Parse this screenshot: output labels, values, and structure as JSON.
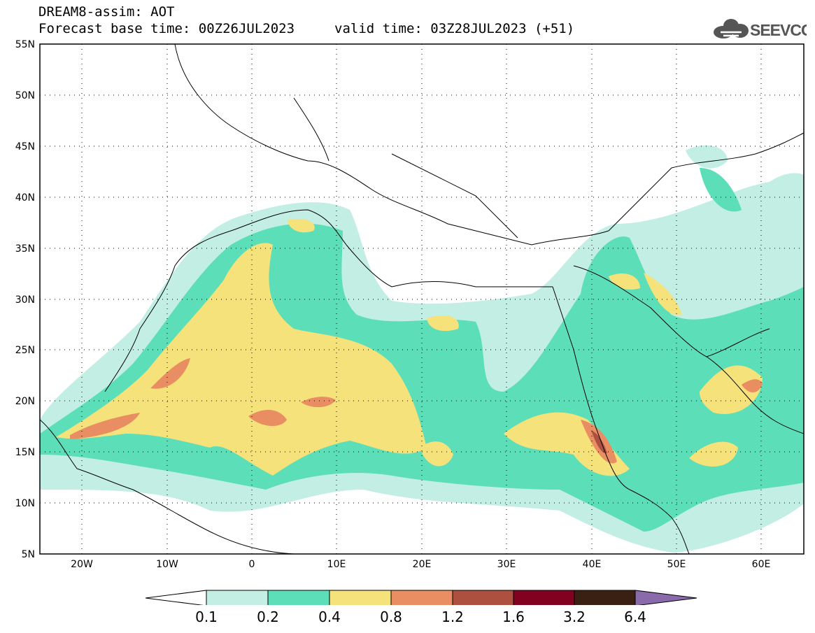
{
  "header": {
    "title": "DREAM8-assim: AOT",
    "base_time": "Forecast base time: 00Z26JUL2023",
    "valid_time": "valid time: 03Z28JUL2023 (+51)"
  },
  "logo": {
    "text": "SEEVCCC",
    "icon": "cloud-icon"
  },
  "map": {
    "lat_labels": [
      "55N",
      "50N",
      "45N",
      "40N",
      "35N",
      "30N",
      "25N",
      "20N",
      "15N",
      "10N",
      "5N"
    ],
    "lon_labels": [
      "20W",
      "10W",
      "0",
      "10E",
      "20E",
      "30E",
      "40E",
      "50E",
      "60E"
    ],
    "lat_range": [
      5,
      55
    ],
    "lon_range": [
      -25,
      65
    ],
    "gridlines": "dotted"
  },
  "legend": {
    "labels": [
      "0.1",
      "0.2",
      "0.4",
      "0.8",
      "1.2",
      "1.6",
      "3.2",
      "6.4"
    ],
    "colors": [
      "#ffffff",
      "#c3eee4",
      "#5cdfb8",
      "#f5e27a",
      "#e88e62",
      "#ad5040",
      "#820020",
      "#3a2013",
      "#8a6aaa"
    ]
  },
  "colors": {
    "aot_0_1": "#c3eee4",
    "aot_0_2": "#5cdfb8",
    "aot_0_4": "#f5e27a",
    "aot_0_8": "#e88e62",
    "aot_1_2": "#ad5040"
  }
}
